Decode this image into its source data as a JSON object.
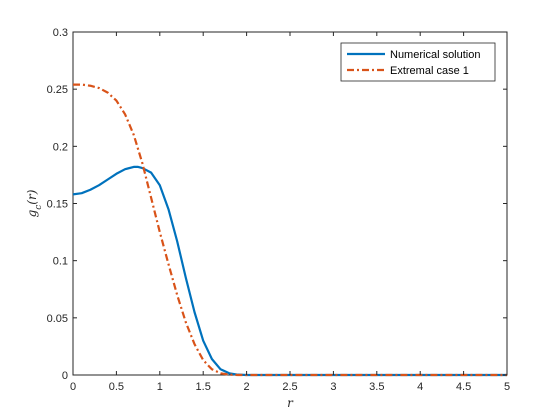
{
  "chart_data": {
    "type": "line",
    "title": "",
    "xlabel": "r",
    "ylabel": "g_c(r)",
    "xlim": [
      0,
      5
    ],
    "ylim": [
      0,
      0.3
    ],
    "xticks": [
      0,
      0.5,
      1,
      1.5,
      2,
      2.5,
      3,
      3.5,
      4,
      4.5,
      5
    ],
    "xtick_labels": [
      "0",
      "0.5",
      "1",
      "1.5",
      "2",
      "2.5",
      "3",
      "3.5",
      "4",
      "4.5",
      "5"
    ],
    "yticks": [
      0,
      0.05,
      0.1,
      0.15,
      0.2,
      0.25,
      0.3
    ],
    "ytick_labels": [
      "0",
      "0.05",
      "0.1",
      "0.15",
      "0.2",
      "0.25",
      "0.3"
    ],
    "grid": false,
    "legend_position": "top-right",
    "series": [
      {
        "name": "Numerical solution",
        "color": "#0072BD",
        "style": "solid",
        "x": [
          0,
          0.1,
          0.2,
          0.3,
          0.4,
          0.5,
          0.6,
          0.7,
          0.75,
          0.8,
          0.9,
          1.0,
          1.1,
          1.2,
          1.3,
          1.4,
          1.5,
          1.6,
          1.7,
          1.8,
          1.9,
          2.0,
          2.5,
          3.0,
          3.5,
          4.0,
          4.5,
          5.0
        ],
        "y": [
          0.158,
          0.159,
          0.162,
          0.166,
          0.171,
          0.176,
          0.18,
          0.182,
          0.182,
          0.181,
          0.177,
          0.166,
          0.145,
          0.117,
          0.085,
          0.055,
          0.03,
          0.014,
          0.005,
          0.0015,
          0.0003,
          0,
          0,
          0,
          0,
          0,
          0,
          0
        ]
      },
      {
        "name": "Extremal case 1",
        "color": "#D95319",
        "style": "dashdot",
        "x": [
          0,
          0.1,
          0.2,
          0.3,
          0.4,
          0.5,
          0.6,
          0.7,
          0.8,
          0.9,
          1.0,
          1.1,
          1.2,
          1.3,
          1.4,
          1.5,
          1.6,
          1.7,
          1.8,
          1.9,
          2.0,
          2.5,
          3.0,
          3.5,
          4.0,
          4.5,
          5.0
        ],
        "y": [
          0.254,
          0.254,
          0.253,
          0.251,
          0.247,
          0.24,
          0.228,
          0.21,
          0.185,
          0.155,
          0.125,
          0.097,
          0.07,
          0.046,
          0.027,
          0.013,
          0.005,
          0.0015,
          0.0003,
          0,
          0,
          0,
          0,
          0,
          0,
          0,
          0
        ]
      }
    ]
  }
}
